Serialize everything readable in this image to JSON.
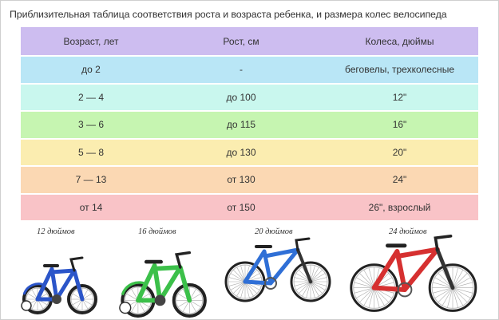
{
  "title": "Приблизительная таблица соответствия роста и возраста ребенка, и размера колес велосипеда",
  "table": {
    "headers": [
      "Возраст, лет",
      "Рост, см",
      "Колеса, дюймы"
    ],
    "rows": [
      {
        "age": "до 2",
        "height": "-",
        "wheels": "беговелы, трехколесные",
        "color": "#b9e6f6"
      },
      {
        "age": "2 — 4",
        "height": "до 100",
        "wheels": "12\"",
        "color": "#c9f7ee"
      },
      {
        "age": "3 — 6",
        "height": "до 115",
        "wheels": "16\"",
        "color": "#c6f5b1"
      },
      {
        "age": "5 — 8",
        "height": "до 130",
        "wheels": "20\"",
        "color": "#fbedb0"
      },
      {
        "age": "7 — 13",
        "height": "от 130",
        "wheels": "24\"",
        "color": "#fbd8b3"
      },
      {
        "age": "от 14",
        "height": "от 150",
        "wheels": "26\", взрослый",
        "color": "#f9c3c7"
      }
    ],
    "header_color": "#cdbdf0"
  },
  "bikes": [
    {
      "label": "12 дюймов",
      "frame_color": "#2b55c9",
      "icon": "kids-bike-training-wheels-icon"
    },
    {
      "label": "16 дюймов",
      "frame_color": "#3cc04a",
      "icon": "kids-bike-training-wheels-icon"
    },
    {
      "label": "20 дюймов",
      "frame_color": "#2f6fd6",
      "icon": "mountain-bike-icon"
    },
    {
      "label": "24 дюймов",
      "frame_color": "#d63030",
      "icon": "mountain-bike-icon"
    }
  ]
}
